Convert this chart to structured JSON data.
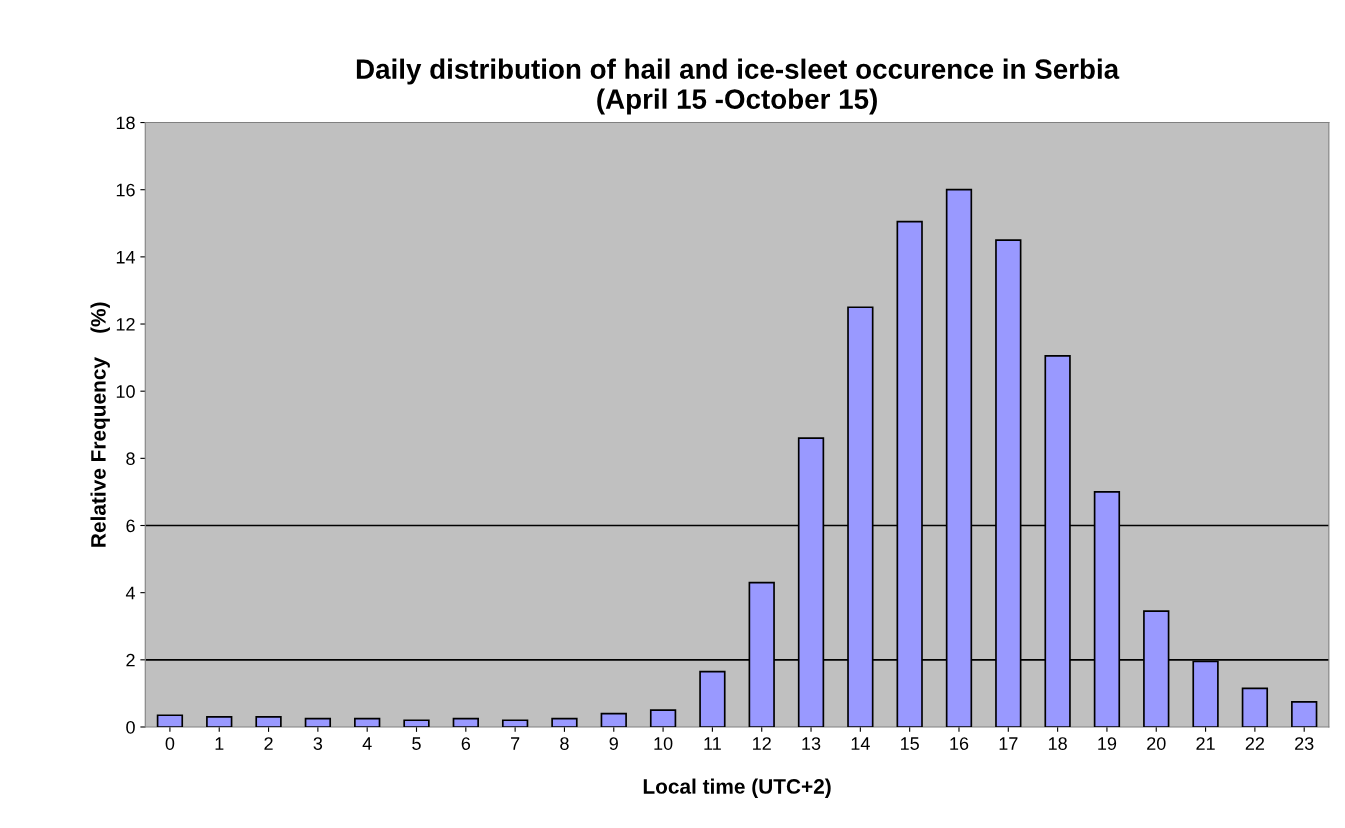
{
  "chart_data": {
    "type": "bar",
    "title": "Daily distribution of hail and ice-sleet occurence in Serbia\n(April 15 -October 15)",
    "xlabel": "Local time (UTC+2)",
    "ylabel": "Relative Frequency    (%)",
    "categories": [
      "0",
      "1",
      "2",
      "3",
      "4",
      "5",
      "6",
      "7",
      "8",
      "9",
      "10",
      "11",
      "12",
      "13",
      "14",
      "15",
      "16",
      "17",
      "18",
      "19",
      "20",
      "21",
      "22",
      "23"
    ],
    "values": [
      0.35,
      0.3,
      0.3,
      0.25,
      0.25,
      0.2,
      0.25,
      0.2,
      0.25,
      0.4,
      0.5,
      1.65,
      4.3,
      8.6,
      12.5,
      15.05,
      16.0,
      14.5,
      11.05,
      7.0,
      3.45,
      1.95,
      1.15,
      0.75
    ],
    "color": "#9999ff",
    "ylim": [
      0,
      18
    ],
    "yticks": [
      0,
      2,
      4,
      6,
      8,
      10,
      12,
      14,
      16,
      18
    ],
    "ref_lines": [
      {
        "axis": "y",
        "value": 2,
        "color": "#000000"
      },
      {
        "axis": "y",
        "value": 6,
        "color": "#000000"
      }
    ],
    "grid": false,
    "legend": false
  }
}
